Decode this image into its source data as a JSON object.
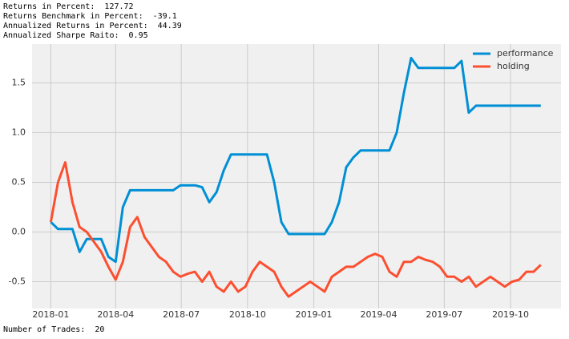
{
  "header": {
    "lines": [
      "Returns in Percent:  127.72",
      "Returns Benchmark in Percent:  -39.1",
      "Annualized Returns in Percent:  44.39",
      "Annualized Sharpe Raito:  0.95"
    ]
  },
  "chart_data": {
    "type": "line",
    "x": [
      0,
      10,
      20,
      30,
      40,
      50,
      60,
      70,
      80,
      90,
      100,
      110,
      120,
      130,
      140,
      150,
      160,
      170,
      180,
      190,
      200,
      210,
      220,
      230,
      240,
      250,
      260,
      270,
      280,
      290,
      300,
      310,
      320,
      330,
      340,
      350,
      360,
      370,
      380,
      390,
      400,
      410,
      420,
      430,
      440,
      450,
      460,
      470,
      480,
      490,
      500,
      510,
      520,
      530,
      540,
      550,
      560,
      570,
      580,
      590,
      600,
      610,
      620,
      630,
      640,
      650,
      660,
      670,
      680
    ],
    "series": [
      {
        "name": "performance",
        "color": "#008fd5",
        "values": [
          0.1,
          0.03,
          0.03,
          0.03,
          -0.2,
          -0.07,
          -0.07,
          -0.07,
          -0.25,
          -0.3,
          0.25,
          0.42,
          0.42,
          0.42,
          0.42,
          0.42,
          0.42,
          0.42,
          0.47,
          0.47,
          0.47,
          0.45,
          0.3,
          0.4,
          0.62,
          0.78,
          0.78,
          0.78,
          0.78,
          0.78,
          0.78,
          0.5,
          0.1,
          -0.02,
          -0.02,
          -0.02,
          -0.02,
          -0.02,
          -0.02,
          0.1,
          0.3,
          0.65,
          0.75,
          0.82,
          0.82,
          0.82,
          0.82,
          0.82,
          1.0,
          1.4,
          1.75,
          1.65,
          1.65,
          1.65,
          1.65,
          1.65,
          1.65,
          1.72,
          1.2,
          1.27,
          1.27,
          1.27,
          1.27,
          1.27,
          1.27,
          1.27,
          1.27,
          1.27,
          1.27
        ]
      },
      {
        "name": "holding",
        "color": "#fc4f30",
        "values": [
          0.1,
          0.5,
          0.7,
          0.3,
          0.05,
          0.0,
          -0.1,
          -0.2,
          -0.35,
          -0.48,
          -0.3,
          0.05,
          0.15,
          -0.05,
          -0.15,
          -0.25,
          -0.3,
          -0.4,
          -0.45,
          -0.42,
          -0.4,
          -0.5,
          -0.4,
          -0.55,
          -0.6,
          -0.5,
          -0.6,
          -0.55,
          -0.4,
          -0.3,
          -0.35,
          -0.4,
          -0.55,
          -0.65,
          -0.6,
          -0.55,
          -0.5,
          -0.55,
          -0.6,
          -0.45,
          -0.4,
          -0.35,
          -0.35,
          -0.3,
          -0.25,
          -0.22,
          -0.25,
          -0.4,
          -0.45,
          -0.3,
          -0.3,
          -0.25,
          -0.28,
          -0.3,
          -0.35,
          -0.45,
          -0.45,
          -0.5,
          -0.45,
          -0.55,
          -0.5,
          -0.45,
          -0.5,
          -0.55,
          -0.5,
          -0.48,
          -0.4,
          -0.4,
          -0.33
        ]
      }
    ],
    "xlim": [
      -26,
      708
    ],
    "xticks": [
      {
        "value": 0,
        "label": "2018-01"
      },
      {
        "value": 90,
        "label": "2018-04"
      },
      {
        "value": 181,
        "label": "2018-07"
      },
      {
        "value": 273,
        "label": "2018-10"
      },
      {
        "value": 365,
        "label": "2019-01"
      },
      {
        "value": 455,
        "label": "2019-04"
      },
      {
        "value": 546,
        "label": "2019-07"
      },
      {
        "value": 638,
        "label": "2019-10"
      }
    ],
    "ylim": [
      -0.77,
      1.89
    ],
    "yticks": [
      -0.5,
      {
        "value": 0,
        "label": "0.0"
      },
      0.5,
      {
        "value": 1,
        "label": "1.0"
      },
      1.5
    ],
    "grid": true,
    "legend": "upper right"
  },
  "footer": "Number of Trades:  20"
}
